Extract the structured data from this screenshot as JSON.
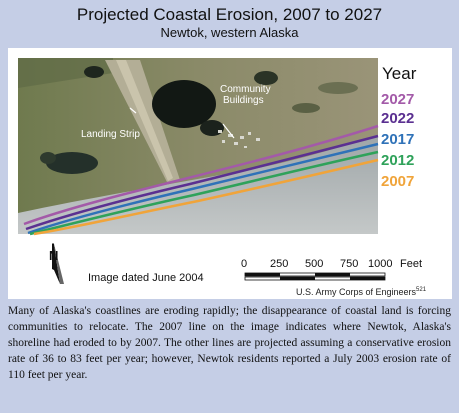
{
  "header": {
    "title": "Projected Coastal Erosion, 2007 to 2027",
    "subtitle": "Newtok, western Alaska"
  },
  "map": {
    "labels": {
      "landing_strip": "Landing Strip",
      "community": "Community",
      "buildings": "Buildings"
    },
    "legend": {
      "title": "Year",
      "items": [
        {
          "year": "2027",
          "color": "#a35aa8"
        },
        {
          "year": "2022",
          "color": "#5b3091"
        },
        {
          "year": "2017",
          "color": "#2f72b8"
        },
        {
          "year": "2012",
          "color": "#2fa25a"
        },
        {
          "year": "2007",
          "color": "#f0a43a"
        }
      ]
    },
    "north_label": "N",
    "image_date": "Image dated June 2004",
    "scale": {
      "ticks": [
        "0",
        "250",
        "500",
        "750",
        "1000"
      ],
      "unit": "Feet"
    },
    "credit": "U.S. Army Corps of Engineers",
    "credit_ref": "521"
  },
  "caption": "Many of Alaska's coastlines are eroding rapidly; the disappearance of coastal land is forcing communities to relocate. The 2007 line on the image indicates where Newtok, Alaska's shoreline had eroded to by 2007. The other lines are projected assuming a conservative erosion rate of 36 to 83 feet per year; however, Newtok residents reported a July 2003 erosion rate of 110 feet per year."
}
